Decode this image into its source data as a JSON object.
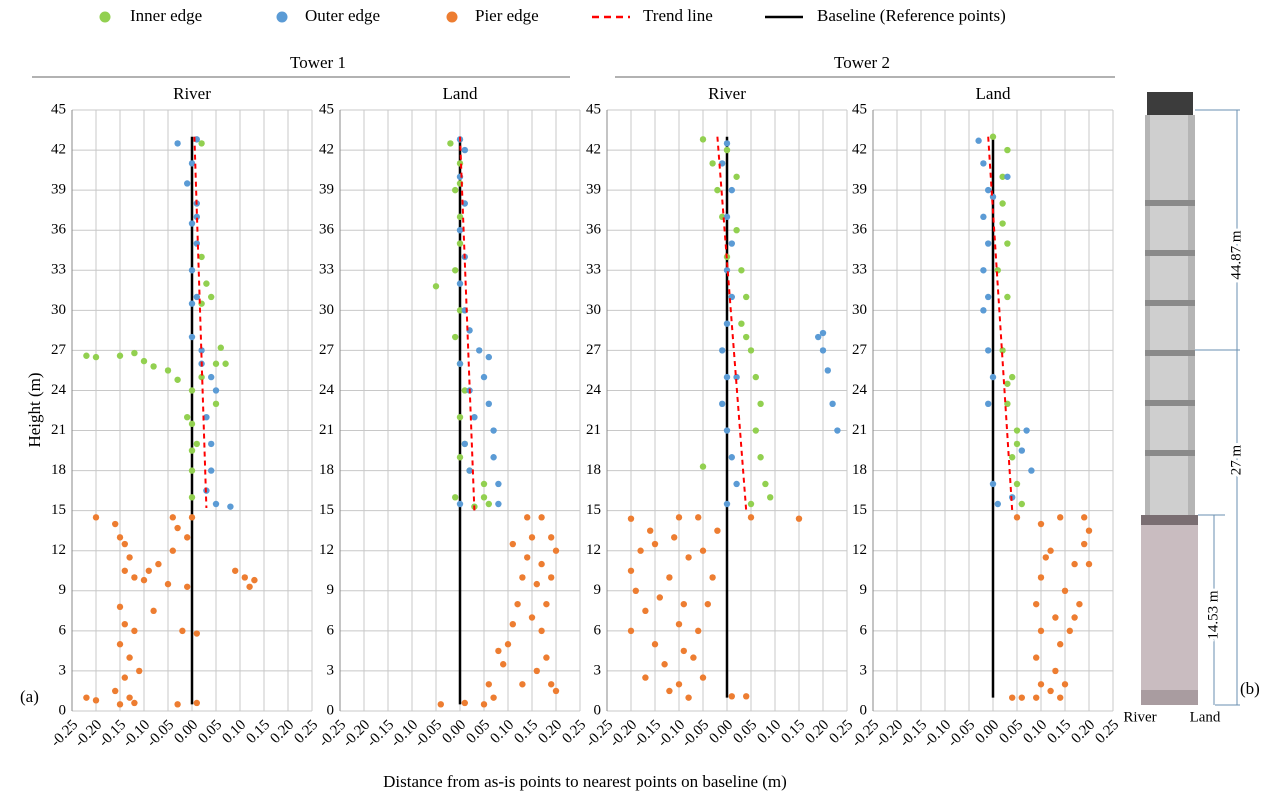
{
  "legend": [
    {
      "name": "Inner edge",
      "color": "#92d050",
      "marker": "circle"
    },
    {
      "name": "Outer edge",
      "color": "#5b9bd5",
      "marker": "circle"
    },
    {
      "name": "Pier edge",
      "color": "#ed7d31",
      "marker": "circle"
    },
    {
      "name": "Trend line",
      "color": "#ff0000",
      "marker": "dashed"
    },
    {
      "name": "Baseline (Reference points)",
      "color": "#000000",
      "marker": "solid"
    }
  ],
  "group_titles": [
    "Tower 1",
    "Tower 2"
  ],
  "x_label": "Distance from as-is points to nearest points on baseline (m)",
  "y_label": "Height (m)",
  "panel_labels": [
    "(a)",
    "(b)"
  ],
  "photo_annotations": [
    "44.87 m",
    "27 m",
    "14.53 m",
    "River",
    "Land"
  ],
  "chart_data": [
    {
      "type": "scatter",
      "title": "River",
      "xlim": [
        -0.25,
        0.25
      ],
      "ylim": [
        0,
        45
      ],
      "grid": true,
      "xticks": [
        {
          "value": -0.25,
          "label": "-0.25"
        },
        {
          "value": -0.2,
          "label": "-0.20"
        },
        {
          "value": -0.15,
          "label": "-0.15"
        },
        {
          "value": -0.1,
          "label": "-0.10"
        },
        {
          "value": -0.05,
          "label": "-0.05"
        },
        {
          "value": 0,
          "label": "0.00"
        },
        {
          "value": 0.05,
          "label": "0.05"
        },
        {
          "value": 0.1,
          "label": "0.10"
        },
        {
          "value": 0.15,
          "label": "0.15"
        },
        {
          "value": 0.2,
          "label": "0.20"
        },
        {
          "value": 0.25,
          "label": "0.25"
        }
      ],
      "yticks": [
        0,
        3,
        6,
        9,
        12,
        15,
        18,
        21,
        24,
        27,
        30,
        33,
        36,
        39,
        42,
        45
      ],
      "series": [
        {
          "x": [
            0,
            0,
            0.01,
            -0.01,
            0,
            0.02,
            0.05,
            0.06,
            0.05,
            -0.05,
            -0.1,
            -0.15,
            -0.2,
            -0.22,
            -0.12,
            -0.08,
            -0.03,
            0.02,
            0.03,
            0.02,
            0.02,
            0,
            0,
            0.07,
            0.04
          ],
          "y": [
            16,
            18,
            20,
            22,
            24,
            25,
            26,
            27.2,
            23,
            25.5,
            26.2,
            26.6,
            26.5,
            26.6,
            26.8,
            25.8,
            24.8,
            30.5,
            32,
            34,
            42.5,
            19.5,
            21.5,
            26,
            31
          ]
        },
        {
          "x": [
            -0.03,
            0.01,
            0,
            -0.01,
            0.01,
            0,
            0.01,
            0,
            0.01,
            0,
            0.02,
            0.04,
            0.05,
            0.03,
            0.04,
            0.04,
            0.03,
            0.05,
            0.08,
            0,
            0.01,
            0.02
          ],
          "y": [
            42.5,
            42.8,
            41,
            39.5,
            38,
            36.5,
            35,
            33,
            31,
            30.5,
            27,
            25,
            24,
            22,
            20,
            18,
            16.5,
            15.5,
            15.3,
            28,
            37,
            26
          ]
        },
        {
          "x": [
            -0.2,
            -0.16,
            -0.15,
            -0.14,
            -0.13,
            -0.14,
            -0.12,
            -0.04,
            -0.03,
            -0.01,
            -0.04,
            -0.07,
            -0.09,
            -0.1,
            -0.05,
            -0.01,
            0.09,
            0.11,
            0.12,
            0.13,
            -0.08,
            -0.15,
            -0.14,
            -0.12,
            -0.15,
            -0.13,
            -0.11,
            -0.14,
            -0.16,
            -0.13,
            -0.2,
            -0.22,
            -0.12,
            -0.03,
            0.01,
            0.01,
            -0.02,
            -0.15,
            0
          ],
          "y": [
            14.5,
            14,
            13,
            12.5,
            11.5,
            10.5,
            10,
            14.5,
            13.7,
            13,
            12,
            11,
            10.5,
            9.8,
            9.5,
            9.3,
            10.5,
            10,
            9.3,
            9.8,
            7.5,
            7.8,
            6.5,
            6,
            5,
            4,
            3,
            2.5,
            1.5,
            1,
            0.8,
            1,
            0.6,
            0.5,
            0.6,
            5.8,
            6,
            0.5,
            14.5
          ]
        },
        {
          "x": [
            0.005,
            0.03
          ],
          "y": [
            43,
            15.2
          ]
        },
        {
          "x": [
            0,
            0
          ],
          "y": [
            0.5,
            43
          ]
        }
      ]
    },
    {
      "type": "scatter",
      "title": "Land",
      "xlim": [
        -0.25,
        0.25
      ],
      "ylim": [
        0,
        45
      ],
      "grid": true,
      "xticks": [
        {
          "value": -0.25,
          "label": "-0.25"
        },
        {
          "value": -0.2,
          "label": "-0.20"
        },
        {
          "value": -0.15,
          "label": "-0.15"
        },
        {
          "value": -0.1,
          "label": "-0.10"
        },
        {
          "value": -0.05,
          "label": "-0.05"
        },
        {
          "value": 0,
          "label": "0.00"
        },
        {
          "value": 0.05,
          "label": "0.05"
        },
        {
          "value": 0.1,
          "label": "0.10"
        },
        {
          "value": 0.15,
          "label": "0.15"
        },
        {
          "value": 0.2,
          "label": "0.20"
        },
        {
          "value": 0.25,
          "label": "0.25"
        }
      ],
      "yticks": [
        0,
        3,
        6,
        9,
        12,
        15,
        18,
        21,
        24,
        27,
        30,
        33,
        36,
        39,
        42,
        45
      ],
      "series": [
        {
          "x": [
            -0.02,
            0,
            -0.01,
            0,
            0,
            -0.01,
            -0.05,
            0,
            -0.01,
            0,
            0.01,
            0,
            0.01,
            0.02,
            0.05,
            0.05,
            0.06,
            -0.01,
            0,
            0.03,
            0
          ],
          "y": [
            42.5,
            41,
            39,
            37,
            35,
            33,
            31.8,
            30,
            28,
            26,
            24,
            22,
            20,
            18,
            17,
            16,
            15.5,
            16,
            19,
            15.3,
            39.5
          ]
        },
        {
          "x": [
            0,
            0.01,
            0,
            0.01,
            0,
            0.01,
            0,
            0.01,
            0.02,
            0.04,
            0.05,
            0.06,
            0.07,
            0.07,
            0.08,
            0.08,
            0.03,
            0.02,
            0,
            0.01,
            0.02,
            0,
            0.06
          ],
          "y": [
            42.8,
            42,
            40,
            38,
            36,
            34,
            32,
            30,
            28.5,
            27,
            25,
            23,
            21,
            19,
            17,
            15.5,
            22,
            24,
            26,
            20,
            18,
            15.5,
            26.5
          ]
        },
        {
          "x": [
            -0.04,
            0.01,
            0.05,
            0.07,
            0.06,
            0.09,
            0.1,
            0.11,
            0.12,
            0.13,
            0.14,
            0.15,
            0.14,
            0.17,
            0.19,
            0.2,
            0.19,
            0.18,
            0.17,
            0.18,
            0.19,
            0.2,
            0.16,
            0.15,
            0.16,
            0.13,
            0.11,
            0.08,
            0.17
          ],
          "y": [
            0.5,
            0.6,
            0.5,
            1,
            2,
            3.5,
            5,
            6.5,
            8,
            10,
            11.5,
            13,
            14.5,
            14.5,
            13,
            12,
            10,
            8,
            6,
            4,
            2,
            1.5,
            3,
            7,
            9.5,
            2,
            12.5,
            4.5,
            11
          ]
        },
        {
          "x": [
            0,
            0.03
          ],
          "y": [
            43,
            15
          ]
        },
        {
          "x": [
            0,
            0
          ],
          "y": [
            0.5,
            43
          ]
        }
      ]
    },
    {
      "type": "scatter",
      "title": "River",
      "xlim": [
        -0.25,
        0.25
      ],
      "ylim": [
        0,
        45
      ],
      "grid": true,
      "xticks": [
        {
          "value": -0.25,
          "label": "-0.25"
        },
        {
          "value": -0.2,
          "label": "-0.20"
        },
        {
          "value": -0.15,
          "label": "-0.15"
        },
        {
          "value": -0.1,
          "label": "-0.10"
        },
        {
          "value": -0.05,
          "label": "-0.05"
        },
        {
          "value": 0,
          "label": "0.00"
        },
        {
          "value": 0.05,
          "label": "0.05"
        },
        {
          "value": 0.1,
          "label": "0.10"
        },
        {
          "value": 0.15,
          "label": "0.15"
        },
        {
          "value": 0.2,
          "label": "0.20"
        },
        {
          "value": 0.25,
          "label": "0.25"
        }
      ],
      "yticks": [
        0,
        3,
        6,
        9,
        12,
        15,
        18,
        21,
        24,
        27,
        30,
        33,
        36,
        39,
        42,
        45
      ],
      "series": [
        {
          "x": [
            -0.05,
            -0.03,
            -0.02,
            -0.01,
            0.02,
            0,
            0.03,
            0.04,
            0.03,
            0.05,
            0.06,
            0.07,
            0.06,
            0.07,
            0.08,
            0.09,
            0.05,
            0,
            0.02,
            -0.05,
            0.04
          ],
          "y": [
            42.8,
            41,
            39,
            37,
            36,
            34,
            33,
            31,
            29,
            27,
            25,
            23,
            21,
            19,
            17,
            16,
            15.5,
            42,
            40,
            18.3,
            28
          ]
        },
        {
          "x": [
            0,
            -0.01,
            0.01,
            0,
            0.01,
            0,
            0.01,
            0,
            -0.01,
            0,
            -0.01,
            0,
            0.01,
            0.02,
            0,
            0.2,
            0.2,
            0.21,
            0.22,
            0.23,
            0.19,
            0.02
          ],
          "y": [
            42.5,
            41,
            39,
            37,
            35,
            33,
            31,
            29,
            27,
            25,
            23,
            21,
            19,
            17,
            15.5,
            28.3,
            27,
            25.5,
            23,
            21,
            28,
            25
          ]
        },
        {
          "x": [
            -0.2,
            -0.16,
            -0.18,
            -0.2,
            -0.19,
            -0.17,
            -0.2,
            -0.15,
            -0.13,
            -0.1,
            -0.12,
            -0.08,
            -0.05,
            -0.07,
            -0.06,
            -0.04,
            -0.03,
            -0.05,
            -0.02,
            -0.1,
            -0.06,
            -0.12,
            -0.09,
            -0.1,
            -0.14,
            -0.08,
            -0.15,
            -0.17,
            0.05,
            0.15,
            0.01,
            0.04,
            -0.09,
            -0.11
          ],
          "y": [
            14.4,
            13.5,
            12,
            10.5,
            9,
            7.5,
            6,
            5,
            3.5,
            2,
            1.5,
            1,
            2.5,
            4,
            6,
            8,
            10,
            12,
            13.5,
            14.5,
            14.5,
            10,
            8,
            6.5,
            8.5,
            11.5,
            12.5,
            2.5,
            14.5,
            14.4,
            1.1,
            1.1,
            4.5,
            13
          ]
        },
        {
          "x": [
            -0.02,
            0.04
          ],
          "y": [
            43,
            15
          ]
        },
        {
          "x": [
            0,
            0
          ],
          "y": [
            1,
            43
          ]
        }
      ]
    },
    {
      "type": "scatter",
      "title": "Land",
      "xlim": [
        -0.25,
        0.25
      ],
      "ylim": [
        0,
        45
      ],
      "grid": true,
      "xticks": [
        {
          "value": -0.25,
          "label": "-0.25"
        },
        {
          "value": -0.2,
          "label": "-0.20"
        },
        {
          "value": -0.15,
          "label": "-0.15"
        },
        {
          "value": -0.1,
          "label": "-0.10"
        },
        {
          "value": -0.05,
          "label": "-0.05"
        },
        {
          "value": 0,
          "label": "0.00"
        },
        {
          "value": 0.05,
          "label": "0.05"
        },
        {
          "value": 0.1,
          "label": "0.10"
        },
        {
          "value": 0.15,
          "label": "0.15"
        },
        {
          "value": 0.2,
          "label": "0.20"
        },
        {
          "value": 0.25,
          "label": "0.25"
        }
      ],
      "yticks": [
        0,
        3,
        6,
        9,
        12,
        15,
        18,
        21,
        24,
        27,
        30,
        33,
        36,
        39,
        42,
        45
      ],
      "series": [
        {
          "x": [
            0,
            0.03,
            0.02,
            0.02,
            0.03,
            0.01,
            0.03,
            0.02,
            0.04,
            0.03,
            0.05,
            0.04,
            0.05,
            0.06,
            0.05,
            0.03,
            0.02
          ],
          "y": [
            43,
            42,
            40,
            38,
            35,
            33,
            31,
            27,
            25,
            23,
            21,
            19,
            17,
            15.5,
            20,
            24.5,
            36.5
          ]
        },
        {
          "x": [
            -0.03,
            -0.02,
            -0.01,
            -0.02,
            -0.01,
            -0.02,
            -0.01,
            -0.02,
            -0.01,
            0,
            -0.01,
            0.07,
            0.06,
            0.08,
            0,
            0.04,
            0.01,
            0.03,
            0
          ],
          "y": [
            42.7,
            41,
            39,
            37,
            35,
            33,
            31,
            30,
            27,
            25,
            23,
            21,
            19.5,
            18,
            17,
            16,
            15.5,
            40,
            38.5
          ]
        },
        {
          "x": [
            0.05,
            0.1,
            0.12,
            0.1,
            0.09,
            0.1,
            0.09,
            0.1,
            0.09,
            0.06,
            0.04,
            0.13,
            0.14,
            0.13,
            0.15,
            0.17,
            0.19,
            0.2,
            0.18,
            0.16,
            0.15,
            0.14,
            0.19,
            0.12,
            0.11,
            0.17,
            0.14,
            0.2
          ],
          "y": [
            14.5,
            14,
            12,
            10,
            8,
            6,
            4,
            2,
            1,
            1,
            1,
            3,
            5,
            7,
            9,
            11,
            12.5,
            11,
            8,
            6,
            2,
            14.5,
            14.5,
            1.5,
            11.5,
            7,
            1,
            13.5
          ]
        },
        {
          "x": [
            -0.01,
            0.04
          ],
          "y": [
            43,
            15
          ]
        },
        {
          "x": [
            0,
            0
          ],
          "y": [
            1,
            43
          ]
        }
      ]
    }
  ]
}
